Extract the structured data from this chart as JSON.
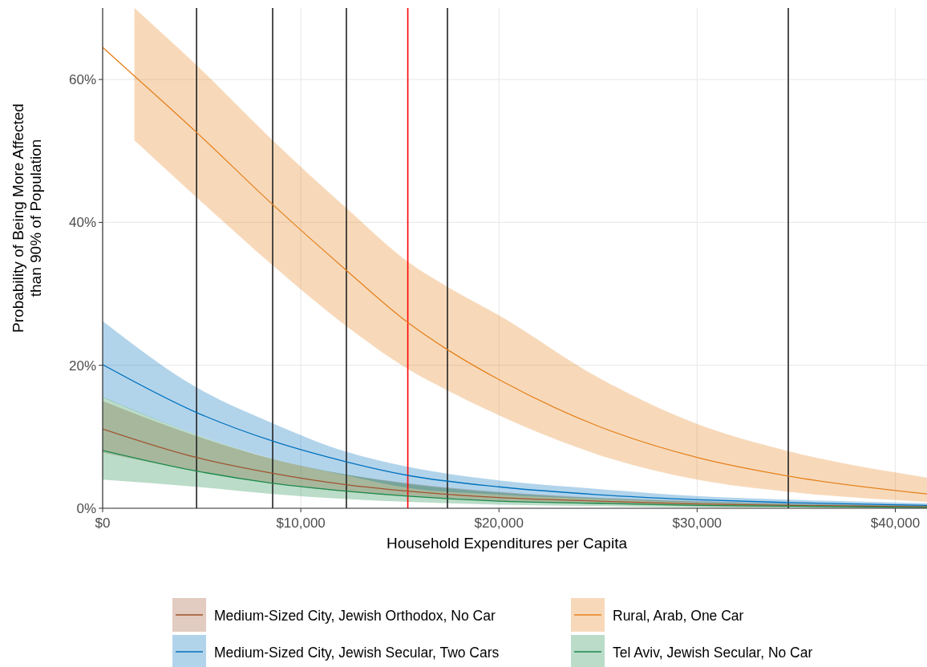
{
  "chart_data": {
    "type": "line",
    "xlabel": "Household Expenditures per Capita",
    "ylabel": "Probability of Being More Affected\nthan 90% of Population",
    "x": [
      0,
      4740,
      8580,
      12300,
      15400,
      20000,
      25000,
      30000,
      34600,
      41600
    ],
    "xlim": [
      0,
      41600
    ],
    "xticks": [
      {
        "value": 0,
        "label": "$0"
      },
      {
        "value": 10000,
        "label": "$10,000"
      },
      {
        "value": 20000,
        "label": "$20,000"
      },
      {
        "value": 30000,
        "label": "$30,000"
      },
      {
        "value": 40000,
        "label": "$40,000"
      }
    ],
    "ylim": [
      0,
      70
    ],
    "yticks": [
      {
        "value": 0,
        "label": "0%"
      },
      {
        "value": 20,
        "label": "20%"
      },
      {
        "value": 40,
        "label": "40%"
      },
      {
        "value": 60,
        "label": "60%"
      }
    ],
    "grid": true,
    "legend": "bottom",
    "series": [
      {
        "name": "Medium-Sized City, Jewish Orthodox, No Car",
        "color": "#a0522d",
        "values": [
          11.1,
          7.1,
          4.9,
          3.3,
          2.4,
          1.5,
          1.0,
          0.6,
          0.4,
          0.2
        ],
        "lower": [
          7.8,
          5.2,
          3.5,
          2.3,
          1.7,
          1.0,
          0.6,
          0.3,
          0.2,
          0.1
        ],
        "upper": [
          15.0,
          10.1,
          6.9,
          4.7,
          3.5,
          2.3,
          1.5,
          1.0,
          0.7,
          0.4
        ]
      },
      {
        "name": "Medium-Sized City, Jewish Secular, Two Cars",
        "color": "#0072bd",
        "values": [
          20.1,
          13.4,
          9.4,
          6.5,
          4.6,
          3.0,
          1.9,
          1.2,
          0.8,
          0.4
        ],
        "lower": [
          15.5,
          10.3,
          6.9,
          4.6,
          2.85,
          1.9,
          1.3,
          0.8,
          0.5,
          0.2
        ],
        "upper": [
          26.2,
          16.9,
          11.9,
          7.9,
          5.8,
          3.9,
          2.7,
          1.7,
          1.2,
          0.7
        ]
      },
      {
        "name": "Rural, Arab, One Car",
        "color": "#e6811c",
        "x": [
          0,
          1600,
          4740,
          8580,
          12300,
          15400,
          17400,
          20000,
          25000,
          30000,
          34600,
          41600
        ],
        "values": [
          64.5,
          60.5,
          52.6,
          42.5,
          33.3,
          26.0,
          22.2,
          18.0,
          11.5,
          7.1,
          4.5,
          2.0
        ],
        "lower": [
          null,
          51.5,
          43.5,
          34.0,
          25.5,
          19.5,
          16.5,
          13.0,
          7.5,
          4.0,
          2.3,
          0.9
        ],
        "upper": [
          null,
          70.0,
          62.0,
          51.5,
          42.0,
          34.5,
          31.0,
          27.0,
          18.3,
          11.8,
          8.0,
          4.3
        ]
      },
      {
        "name": "Tel Aviv, Jewish Secular, No Car",
        "color": "#1b8a4a",
        "values": [
          8.1,
          5.2,
          3.5,
          2.4,
          1.7,
          1.0,
          0.7,
          0.4,
          0.3,
          0.1
        ],
        "lower": [
          4.0,
          3.0,
          2.0,
          1.3,
          0.9,
          0.5,
          0.3,
          0.15,
          0.1,
          0.05
        ],
        "upper": [
          15.6,
          10.3,
          6.9,
          4.7,
          3.4,
          2.2,
          1.4,
          0.9,
          0.6,
          0.35
        ]
      }
    ],
    "ref_lines": [
      {
        "axis": "x",
        "value": 4740,
        "color": "#222222"
      },
      {
        "axis": "x",
        "value": 8580,
        "color": "#222222"
      },
      {
        "axis": "x",
        "value": 12300,
        "color": "#222222"
      },
      {
        "axis": "x",
        "value": 15400,
        "color": "#ff0000"
      },
      {
        "axis": "x",
        "value": 17400,
        "color": "#222222"
      },
      {
        "axis": "x",
        "value": 34600,
        "color": "#222222"
      }
    ]
  }
}
